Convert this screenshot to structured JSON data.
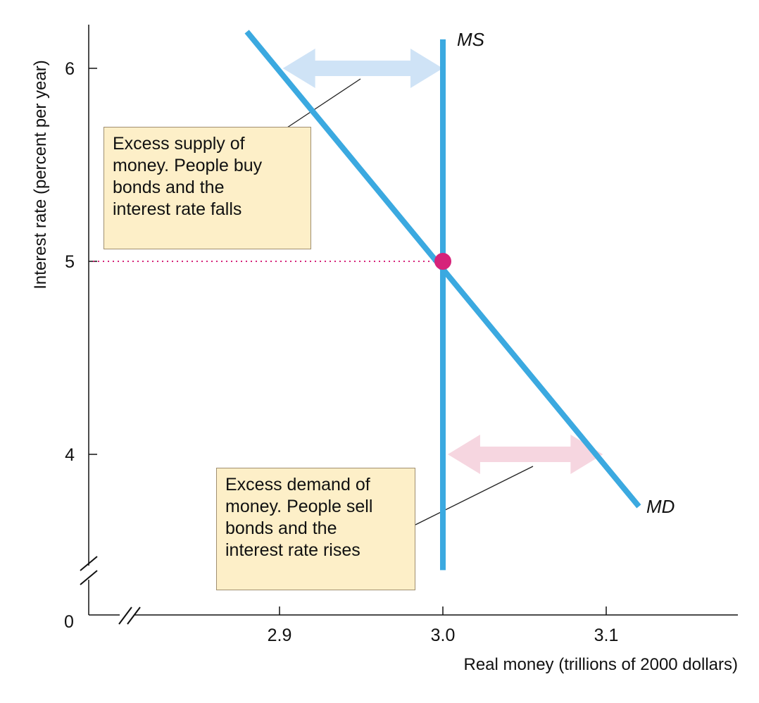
{
  "chart_data": {
    "type": "line",
    "xlabel": "Real money (trillions of 2000 dollars)",
    "ylabel": "Interest rate (percent per year)",
    "x_ticks": [
      {
        "value": 2.9,
        "label": "2.9"
      },
      {
        "value": 3.0,
        "label": "3.0",
        "highlight": true
      },
      {
        "value": 3.1,
        "label": "3.1"
      }
    ],
    "y_ticks": [
      {
        "value": 4,
        "label": "4"
      },
      {
        "value": 5,
        "label": "5",
        "highlight": true
      },
      {
        "value": 6,
        "label": "6"
      }
    ],
    "origin_label": "0",
    "axis_breaks": true,
    "xlim": [
      2.85,
      3.18
    ],
    "ylim": [
      3.4,
      6.2
    ],
    "series": [
      {
        "name": "MS",
        "points": [
          [
            3.0,
            3.4
          ],
          [
            3.0,
            6.15
          ]
        ]
      },
      {
        "name": "MD",
        "points": [
          [
            2.88,
            6.19
          ],
          [
            3.12,
            3.73
          ]
        ]
      }
    ],
    "equilibrium": {
      "x": 3.0,
      "y": 5
    },
    "annotations": [
      {
        "text": "Excess supply of\nmoney. People buy\nbonds and the\ninterest rate falls",
        "arrow_y": 6,
        "arrow_x": [
          2.902,
          3.0
        ],
        "arrow_color": "#cfe3f6"
      },
      {
        "text": "Excess demand of\nmoney. People sell\nbonds and the\ninterest rate rises",
        "arrow_y": 4,
        "arrow_x": [
          3.003,
          3.098
        ],
        "arrow_color": "#f6d6e0"
      }
    ],
    "colors": {
      "curve": "#3ba9e0",
      "highlight": "#d6237a",
      "box_fill": "#fdefc8",
      "axis": "#111111"
    }
  }
}
